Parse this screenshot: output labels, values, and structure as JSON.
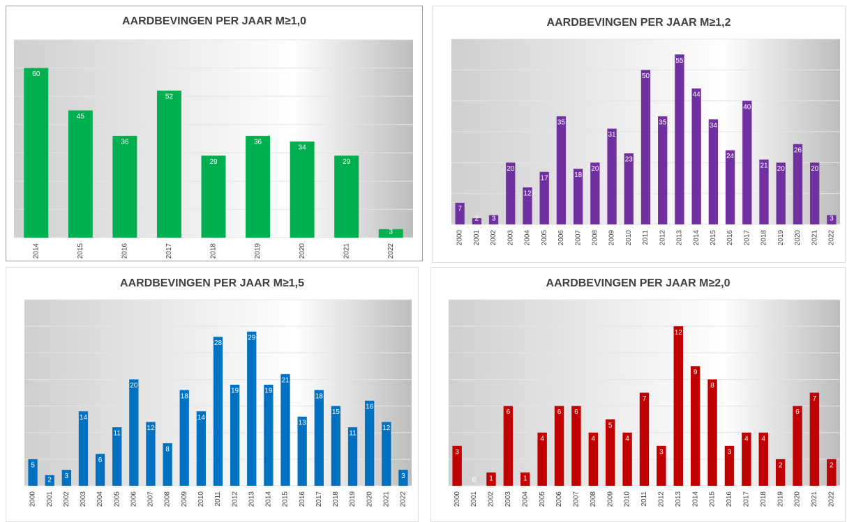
{
  "chart_data": [
    {
      "type": "bar",
      "title": "AARDBEVINGEN PER JAAR M≥1,0",
      "color": "#00b050",
      "grid": true,
      "categories": [
        "2014",
        "2015",
        "2016",
        "2017",
        "2018",
        "2019",
        "2020",
        "2021",
        "2022"
      ],
      "values": [
        60,
        45,
        36,
        52,
        29,
        36,
        34,
        29,
        3
      ],
      "ylim": [
        0,
        70
      ],
      "yticks": [
        0,
        10,
        20,
        30,
        40,
        50,
        60,
        70
      ]
    },
    {
      "type": "bar",
      "title": "AARDBEVINGEN PER JAAR M≥1,2",
      "color": "#7030a0",
      "grid": true,
      "categories": [
        "2000",
        "2001",
        "2002",
        "2003",
        "2004",
        "2005",
        "2006",
        "2007",
        "2008",
        "2009",
        "2010",
        "2011",
        "2012",
        "2013",
        "2014",
        "2015",
        "2016",
        "2017",
        "2018",
        "2019",
        "2020",
        "2021",
        "2022"
      ],
      "values": [
        7,
        2,
        3,
        20,
        12,
        17,
        35,
        18,
        20,
        31,
        23,
        50,
        35,
        55,
        44,
        34,
        24,
        40,
        21,
        20,
        26,
        20,
        3
      ],
      "ylim": [
        0,
        60
      ],
      "yticks": [
        0,
        10,
        20,
        30,
        40,
        50,
        60
      ]
    },
    {
      "type": "bar",
      "title": "AARDBEVINGEN PER JAAR M≥1,5",
      "color": "#0070c0",
      "grid": true,
      "categories": [
        "2000",
        "2001",
        "2002",
        "2003",
        "2004",
        "2005",
        "2006",
        "2007",
        "2008",
        "2009",
        "2010",
        "2011",
        "2012",
        "2013",
        "2014",
        "2015",
        "2016",
        "2017",
        "2018",
        "2019",
        "2020",
        "2021",
        "2022"
      ],
      "values": [
        5,
        2,
        3,
        14,
        6,
        11,
        20,
        12,
        8,
        18,
        14,
        28,
        19,
        29,
        19,
        21,
        13,
        18,
        15,
        11,
        16,
        12,
        3
      ],
      "ylim": [
        0,
        35
      ],
      "yticks": [
        0,
        5,
        10,
        15,
        20,
        25,
        30,
        35
      ]
    },
    {
      "type": "bar",
      "title": "AARDBEVINGEN PER JAAR M≥2,0",
      "color": "#c00000",
      "grid": true,
      "categories": [
        "2000",
        "2001",
        "2002",
        "2003",
        "2004",
        "2005",
        "2006",
        "2007",
        "2008",
        "2009",
        "2010",
        "2011",
        "2012",
        "2013",
        "2014",
        "2015",
        "2016",
        "2017",
        "2018",
        "2019",
        "2020",
        "2021",
        "2022"
      ],
      "values": [
        3,
        0,
        1,
        6,
        1,
        4,
        6,
        6,
        4,
        5,
        4,
        7,
        3,
        12,
        9,
        8,
        3,
        4,
        4,
        2,
        6,
        7,
        2
      ],
      "ylim": [
        0,
        14
      ],
      "yticks": [
        0,
        2,
        4,
        6,
        8,
        10,
        12,
        14
      ]
    }
  ]
}
